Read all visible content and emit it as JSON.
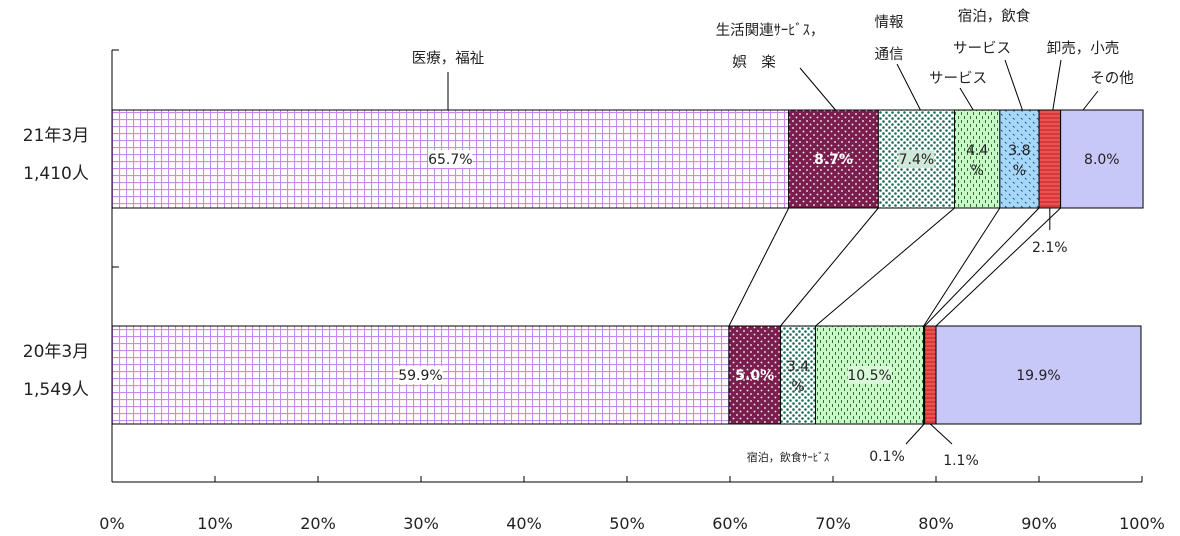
{
  "chart_data": {
    "type": "bar",
    "orientation": "horizontal-stacked-100",
    "xlim": [
      0,
      100
    ],
    "x_ticks": [
      "0%",
      "10%",
      "20%",
      "30%",
      "40%",
      "50%",
      "60%",
      "70%",
      "80%",
      "90%",
      "100%"
    ],
    "bars": [
      {
        "key": "r21",
        "label": "21年3月",
        "total": "1,410人"
      },
      {
        "key": "r20",
        "label": "20年3月",
        "total": "1,549人"
      }
    ],
    "series": [
      {
        "key": "iryo",
        "name": "医療，福祉",
        "color": "#d8a8f0",
        "pattern": "grid",
        "values": {
          "r21": 65.7,
          "r20": 59.9
        },
        "labels": {
          "r21": "65.7%",
          "r20": "59.9%"
        }
      },
      {
        "key": "seikatsu",
        "name": "生活関連ｻｰﾋﾞｽ，娯 楽",
        "name_lines": [
          "生活関連ｻｰﾋﾞｽ，",
          "娯　楽"
        ],
        "color": "#7a1e4e",
        "pattern": "dots-white",
        "values": {
          "r21": 8.7,
          "r20": 5.0
        },
        "labels": {
          "r21": "8.7%",
          "r20": "5.0%"
        }
      },
      {
        "key": "joho",
        "name": "情報通信",
        "name_lines": [
          "情報",
          "通信"
        ],
        "color": "#ffffff",
        "pattern": "dots-green",
        "values": {
          "r21": 7.4,
          "r20": 3.4
        },
        "labels": {
          "r21": "7.4%",
          "r20": "3.4 %"
        }
      },
      {
        "key": "service",
        "name": "サービス",
        "name_lines": [
          "サービス"
        ],
        "color": "#c8f8c8",
        "pattern": "vdash",
        "values": {
          "r21": 4.4,
          "r20": 10.5
        },
        "labels": {
          "r21": "4.4 %",
          "r20": "10.5%"
        }
      },
      {
        "key": "shukuhaku",
        "name": "宿泊，飲食サービス",
        "name_lines": [
          "宿泊，飲食",
          "サービス"
        ],
        "color": "#a8d8f8",
        "pattern": "checks",
        "values": {
          "r21": 3.8,
          "r20": 0.1
        },
        "labels": {
          "r21": "3.8 %",
          "r20": "0.1%"
        }
      },
      {
        "key": "oroshi",
        "name": "卸売，小売",
        "name_lines": [
          "卸売，小売"
        ],
        "color": "#f05050",
        "pattern": "hlines",
        "values": {
          "r21": 2.1,
          "r20": 1.1
        },
        "labels": {
          "r21": "2.1%",
          "r20": "1.1%"
        }
      },
      {
        "key": "sonota",
        "name": "その他",
        "name_lines": [
          "その他"
        ],
        "color": "#c8c8f8",
        "pattern": "none",
        "values": {
          "r21": 8.0,
          "r20": 19.9
        },
        "labels": {
          "r21": "8.0%",
          "r20": "19.9%"
        }
      }
    ],
    "annotations": {
      "r20_shukuhaku_callout": "宿泊，飲食ｻｰﾋﾞｽ"
    }
  }
}
